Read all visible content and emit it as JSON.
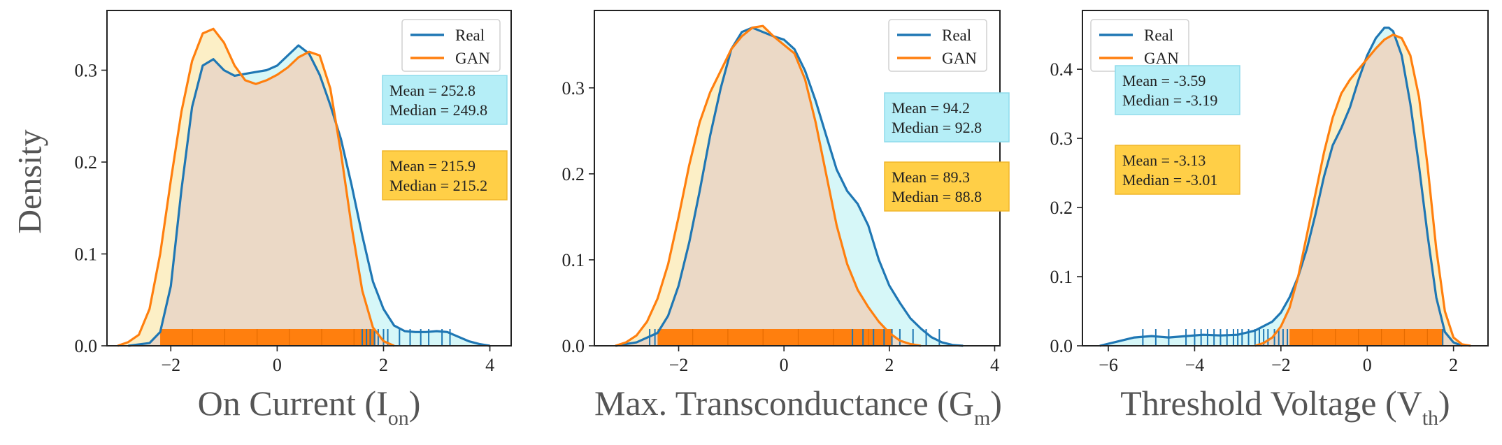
{
  "colors": {
    "real": "#1f77b4",
    "gan": "#ff7f0e",
    "real_fill": "#d6f7f8",
    "gan_fill": "#fcefc6",
    "overlap_fill": "#ebd9c6",
    "stats_real_bg": "#b5eef7",
    "stats_real_border": "#8fdcec",
    "stats_gan_bg": "#ffcf47",
    "stats_gan_border": "#f0b52a",
    "axis_text": "#555555"
  },
  "ylabel": "Density",
  "chart_data": [
    {
      "type": "area",
      "subtype": "kde-density-with-rug",
      "xlabel": {
        "main": "On Current (I",
        "sub": "on",
        "close": ")"
      },
      "xlim": [
        -3.2,
        4.4
      ],
      "ylim": [
        0,
        0.365
      ],
      "xticks": [
        -2,
        0,
        2,
        4
      ],
      "yticks": [
        0.0,
        0.1,
        0.2,
        0.3
      ],
      "legend": {
        "placement": "top-right",
        "entries": [
          "Real",
          "GAN"
        ]
      },
      "series": [
        {
          "name": "Real",
          "x": [
            -2.8,
            -2.4,
            -2.2,
            -2.0,
            -1.8,
            -1.6,
            -1.4,
            -1.2,
            -1.0,
            -0.8,
            -0.6,
            -0.4,
            -0.2,
            0.0,
            0.2,
            0.4,
            0.6,
            0.8,
            1.0,
            1.2,
            1.4,
            1.6,
            1.8,
            2.0,
            2.2,
            2.4,
            2.6,
            2.8,
            3.0,
            3.2,
            3.4,
            3.6,
            3.8,
            4.0
          ],
          "y": [
            0.0,
            0.003,
            0.015,
            0.065,
            0.17,
            0.26,
            0.305,
            0.312,
            0.3,
            0.294,
            0.296,
            0.298,
            0.3,
            0.305,
            0.316,
            0.327,
            0.318,
            0.295,
            0.262,
            0.225,
            0.175,
            0.12,
            0.07,
            0.04,
            0.022,
            0.016,
            0.015,
            0.015,
            0.016,
            0.015,
            0.01,
            0.005,
            0.002,
            0.0
          ]
        },
        {
          "name": "GAN",
          "x": [
            -3.0,
            -2.8,
            -2.6,
            -2.4,
            -2.2,
            -2.0,
            -1.8,
            -1.6,
            -1.4,
            -1.2,
            -1.0,
            -0.8,
            -0.6,
            -0.4,
            -0.2,
            0.0,
            0.2,
            0.4,
            0.6,
            0.8,
            1.0,
            1.2,
            1.4,
            1.6,
            1.8,
            2.0,
            2.2
          ],
          "y": [
            0.0,
            0.004,
            0.012,
            0.04,
            0.1,
            0.18,
            0.255,
            0.31,
            0.34,
            0.345,
            0.33,
            0.305,
            0.289,
            0.285,
            0.289,
            0.295,
            0.303,
            0.314,
            0.32,
            0.316,
            0.28,
            0.21,
            0.13,
            0.06,
            0.02,
            0.005,
            0.0
          ]
        }
      ],
      "rug": {
        "gan_range": [
          -2.2,
          1.85
        ],
        "real_ticks": [
          1.6,
          1.68,
          1.75,
          1.83,
          1.9,
          2.0,
          2.08,
          2.3,
          2.5,
          2.7,
          2.85,
          3.1,
          3.25
        ]
      },
      "stats": [
        {
          "series": "Real",
          "mean": "Mean = 252.8",
          "median": "Median = 249.8"
        },
        {
          "series": "GAN",
          "mean": "Mean = 215.9",
          "median": "Median = 215.2"
        }
      ]
    },
    {
      "type": "area",
      "subtype": "kde-density-with-rug",
      "xlabel": {
        "main": "Max. Transconductance (G",
        "sub": "m",
        "close": ")"
      },
      "xlim": [
        -3.6,
        4.1
      ],
      "ylim": [
        0,
        0.39
      ],
      "xticks": [
        -2,
        0,
        2,
        4
      ],
      "yticks": [
        0.0,
        0.1,
        0.2,
        0.3
      ],
      "legend": {
        "placement": "top-right",
        "entries": [
          "Real",
          "GAN"
        ]
      },
      "series": [
        {
          "name": "Real",
          "x": [
            -3.2,
            -2.8,
            -2.4,
            -2.2,
            -2.0,
            -1.8,
            -1.6,
            -1.4,
            -1.2,
            -1.0,
            -0.8,
            -0.6,
            -0.4,
            -0.2,
            0.0,
            0.2,
            0.4,
            0.6,
            0.8,
            1.0,
            1.2,
            1.4,
            1.6,
            1.8,
            2.0,
            2.2,
            2.4,
            2.6,
            2.8,
            3.0,
            3.2,
            3.4
          ],
          "y": [
            0.0,
            0.004,
            0.015,
            0.035,
            0.07,
            0.12,
            0.18,
            0.245,
            0.3,
            0.345,
            0.365,
            0.37,
            0.365,
            0.36,
            0.356,
            0.345,
            0.32,
            0.285,
            0.245,
            0.205,
            0.18,
            0.165,
            0.14,
            0.1,
            0.07,
            0.05,
            0.032,
            0.02,
            0.01,
            0.004,
            0.001,
            0.0
          ]
        },
        {
          "name": "GAN",
          "x": [
            -3.2,
            -3.0,
            -2.8,
            -2.6,
            -2.4,
            -2.2,
            -2.0,
            -1.8,
            -1.6,
            -1.4,
            -1.2,
            -1.0,
            -0.8,
            -0.6,
            -0.4,
            -0.2,
            0.0,
            0.2,
            0.4,
            0.6,
            0.8,
            1.0,
            1.2,
            1.4,
            1.6,
            1.8,
            2.0,
            2.2,
            2.4,
            2.6
          ],
          "y": [
            0.0,
            0.004,
            0.012,
            0.028,
            0.055,
            0.095,
            0.15,
            0.21,
            0.26,
            0.295,
            0.32,
            0.345,
            0.36,
            0.37,
            0.372,
            0.36,
            0.35,
            0.34,
            0.31,
            0.26,
            0.2,
            0.14,
            0.095,
            0.065,
            0.045,
            0.028,
            0.015,
            0.006,
            0.002,
            0.0
          ]
        }
      ],
      "rug": {
        "gan_range": [
          -2.4,
          2.05
        ],
        "real_ticks": [
          -2.55,
          -2.45,
          1.3,
          1.5,
          1.7,
          1.9,
          2.05,
          2.2,
          2.45,
          2.7,
          2.95
        ]
      },
      "stats": [
        {
          "series": "Real",
          "mean": "Mean = 94.2",
          "median": "Median = 92.8"
        },
        {
          "series": "GAN",
          "mean": "Mean = 89.3",
          "median": "Median = 88.8"
        }
      ]
    },
    {
      "type": "area",
      "subtype": "kde-density-with-rug",
      "xlabel": {
        "main": "Threshold Voltage (V",
        "sub": "th",
        "close": ")"
      },
      "xlim": [
        -6.6,
        2.8
      ],
      "ylim": [
        0,
        0.485
      ],
      "xticks": [
        -6,
        -4,
        -2,
        0,
        2
      ],
      "yticks": [
        0.0,
        0.1,
        0.2,
        0.3,
        0.4
      ],
      "legend": {
        "placement": "top-left",
        "entries": [
          "Real",
          "GAN"
        ]
      },
      "series": [
        {
          "name": "Real",
          "x": [
            -6.2,
            -5.8,
            -5.4,
            -5.0,
            -4.6,
            -4.2,
            -3.8,
            -3.4,
            -3.0,
            -2.6,
            -2.2,
            -2.0,
            -1.8,
            -1.6,
            -1.4,
            -1.2,
            -1.0,
            -0.8,
            -0.6,
            -0.4,
            -0.2,
            0.0,
            0.2,
            0.4,
            0.5,
            0.6,
            0.8,
            1.0,
            1.2,
            1.4,
            1.6,
            1.8,
            2.0,
            2.2
          ],
          "y": [
            0.0,
            0.006,
            0.012,
            0.014,
            0.012,
            0.014,
            0.016,
            0.015,
            0.016,
            0.022,
            0.035,
            0.048,
            0.07,
            0.1,
            0.14,
            0.19,
            0.245,
            0.29,
            0.315,
            0.345,
            0.385,
            0.42,
            0.445,
            0.46,
            0.46,
            0.455,
            0.42,
            0.35,
            0.26,
            0.16,
            0.07,
            0.02,
            0.005,
            0.0
          ]
        },
        {
          "name": "GAN",
          "x": [
            -2.6,
            -2.4,
            -2.2,
            -2.0,
            -1.8,
            -1.6,
            -1.4,
            -1.2,
            -1.0,
            -0.8,
            -0.6,
            -0.4,
            -0.2,
            0.0,
            0.2,
            0.4,
            0.6,
            0.8,
            1.0,
            1.2,
            1.4,
            1.6,
            1.8,
            2.0,
            2.2,
            2.4
          ],
          "y": [
            0.0,
            0.004,
            0.012,
            0.028,
            0.055,
            0.1,
            0.16,
            0.22,
            0.28,
            0.33,
            0.365,
            0.385,
            0.4,
            0.415,
            0.43,
            0.443,
            0.45,
            0.445,
            0.42,
            0.36,
            0.26,
            0.14,
            0.05,
            0.012,
            0.002,
            0.0
          ]
        }
      ],
      "rug": {
        "gan_range": [
          -1.8,
          1.75
        ],
        "real_ticks": [
          -5.2,
          -4.9,
          -4.6,
          -4.2,
          -4.0,
          -3.85,
          -3.7,
          -3.55,
          -3.4,
          -3.25,
          -3.1,
          -3.0,
          -2.9,
          -2.75,
          -2.6,
          -2.5,
          -2.4,
          -2.3,
          -2.15,
          -2.05,
          -1.95,
          -1.85,
          1.75
        ]
      },
      "stats": [
        {
          "series": "Real",
          "mean": "Mean = -3.59",
          "median": "Median = -3.19"
        },
        {
          "series": "GAN",
          "mean": "Mean = -3.13",
          "median": "Median = -3.01"
        }
      ]
    }
  ]
}
